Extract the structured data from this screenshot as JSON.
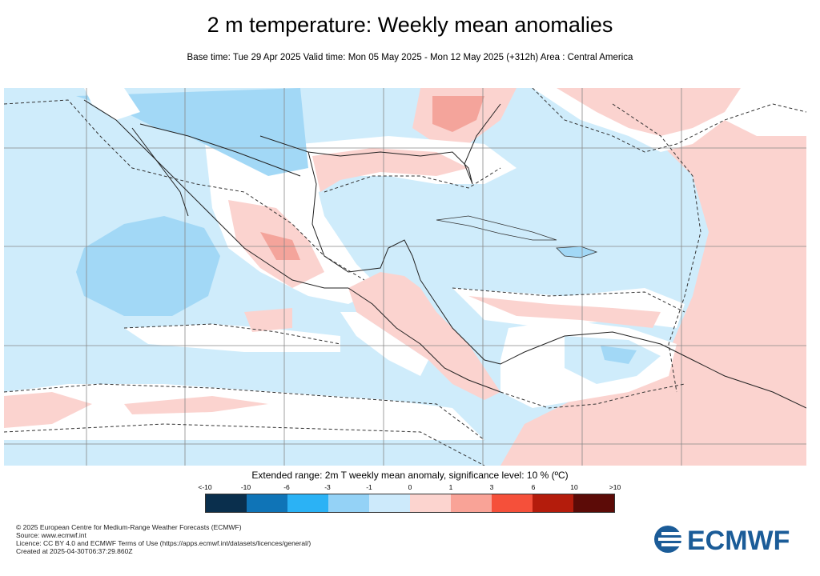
{
  "title": "2 m temperature: Weekly mean anomalies",
  "subtitle": "Base time: Tue 29 Apr 2025 Valid time: Mon 05 May 2025 - Mon 12 May 2025 (+312h) Area : Central America",
  "map": {
    "region": "Central America",
    "colors": {
      "light_blue": "#cfecfb",
      "mid_blue": "#a2d8f6",
      "light_red": "#fbd3cf",
      "mid_red": "#f4a49b",
      "white": "#ffffff"
    }
  },
  "legend": {
    "title": "Extended range: 2m T weekly mean anomaly, significance level: 10 % (ºC)",
    "labels": [
      "<-10",
      "-10",
      "-6",
      "-3",
      "-1",
      "0",
      "1",
      "3",
      "6",
      "10",
      ">10"
    ],
    "colors": [
      "#0a2f4d",
      "#0f74b7",
      "#2bb2f5",
      "#94d2f6",
      "#cdeafb",
      "#fcd4cf",
      "#f9a397",
      "#f5503a",
      "#b41c0c",
      "#5c0b07"
    ]
  },
  "footer": {
    "copyright": "© 2025 European Centre for Medium-Range Weather Forecasts (ECMWF)",
    "source": "Source: www.ecmwf.int",
    "licence": "Licence: CC BY 4.0 and ECMWF Terms of Use (https://apps.ecmwf.int/datasets/licences/general/)",
    "created": "Created at 2025-04-30T06:37:29.860Z"
  },
  "logo": {
    "text": "ECMWF",
    "color": "#1b5c98"
  }
}
